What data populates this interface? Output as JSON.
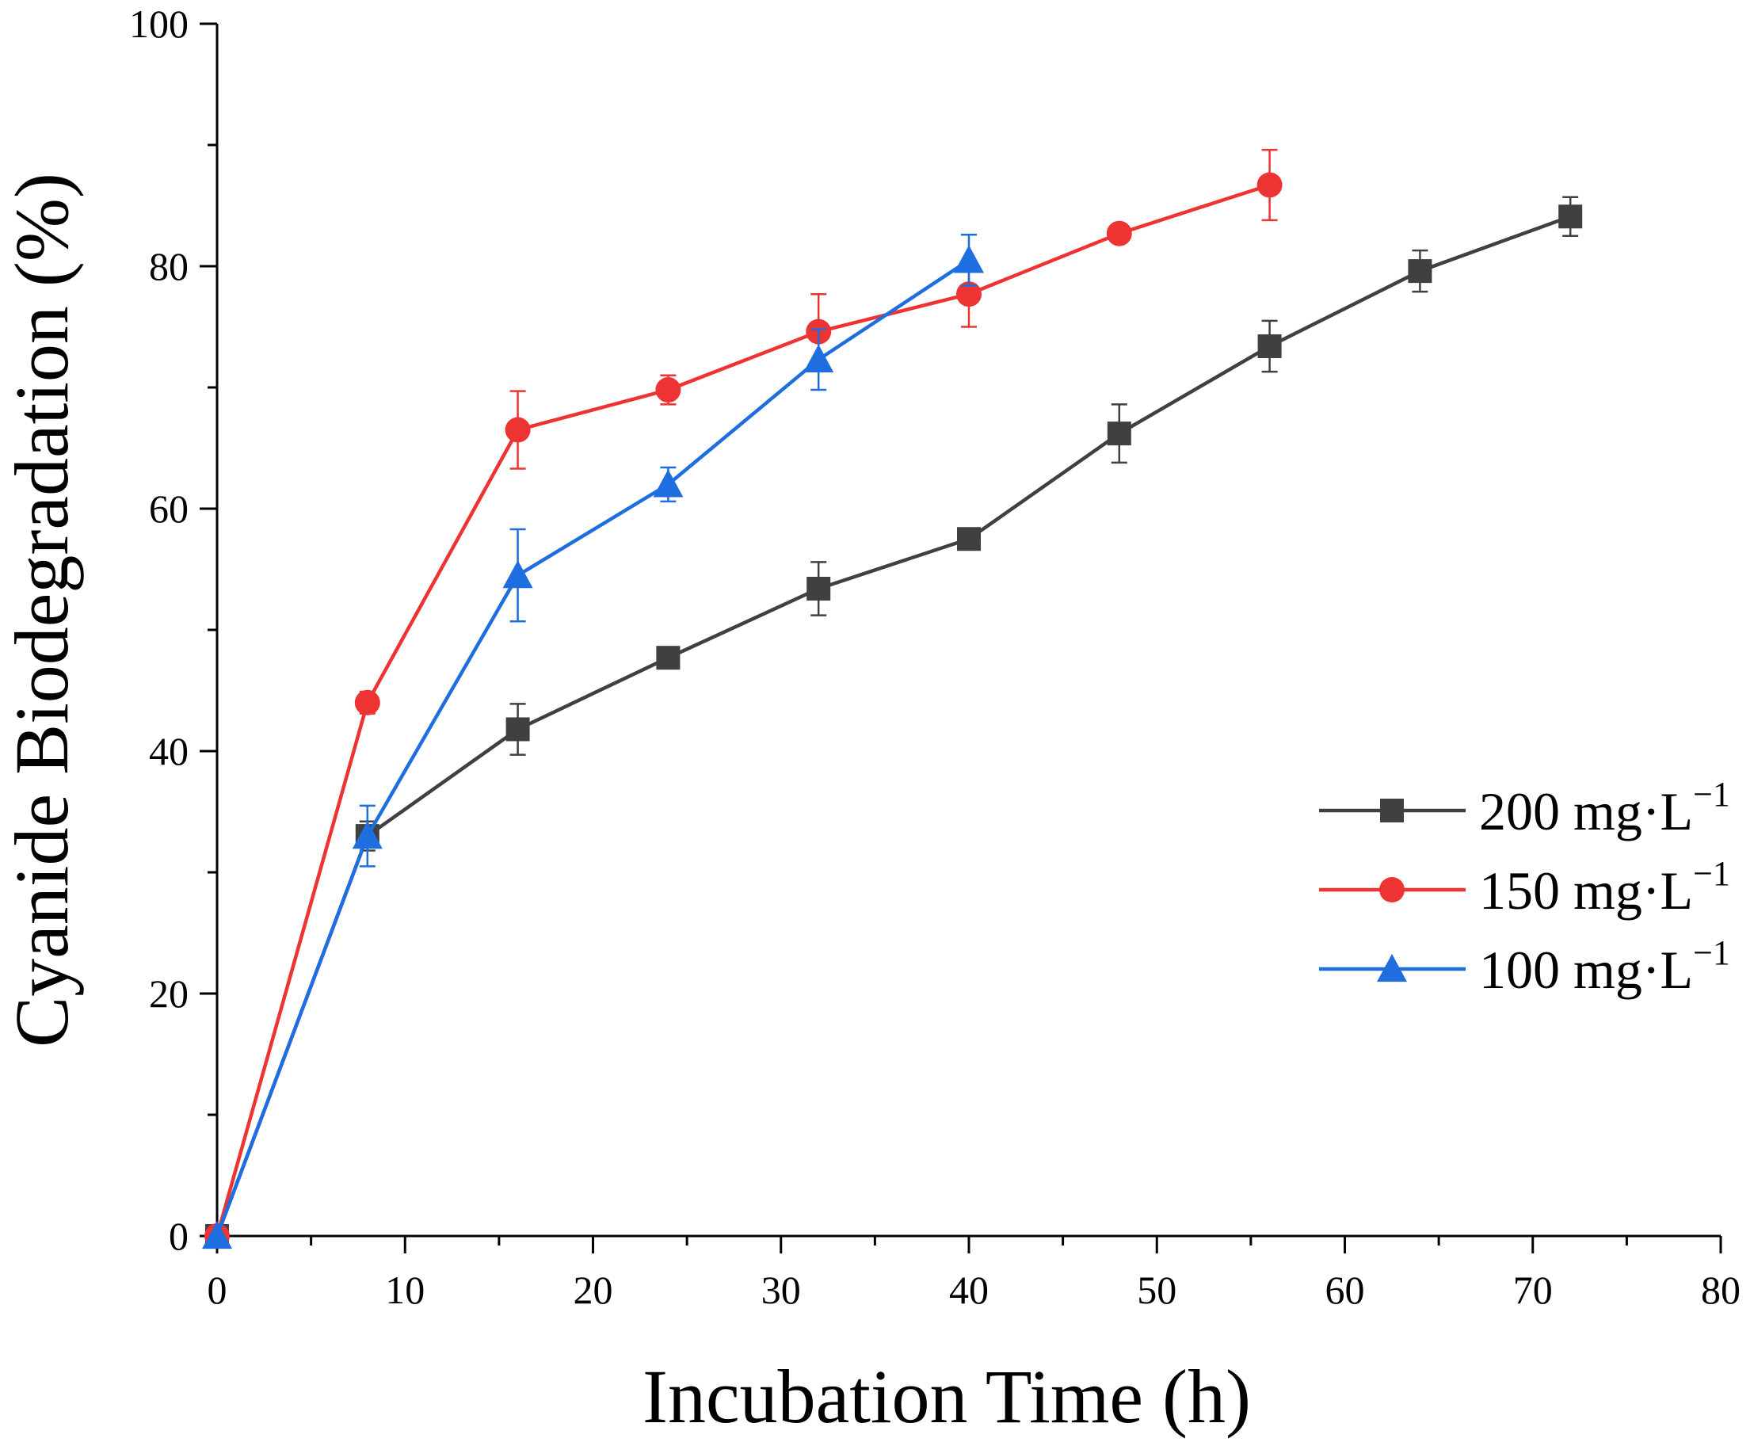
{
  "chart_data": {
    "type": "line",
    "title": "",
    "xlabel": "Incubation Time (h)",
    "ylabel": "Cyanide Biodegradation (%)",
    "xlim": [
      0,
      80
    ],
    "ylim": [
      0,
      100
    ],
    "xticks": [
      0,
      10,
      20,
      30,
      40,
      50,
      60,
      70,
      80
    ],
    "yticks": [
      0,
      20,
      40,
      60,
      80,
      100
    ],
    "grid": false,
    "legend_position": "right",
    "series": [
      {
        "name": "200 mg·L",
        "superscript": "−1",
        "color": "#404040",
        "marker": "square",
        "x": [
          0,
          8,
          16,
          24,
          32,
          40,
          48,
          56,
          64,
          72
        ],
        "y": [
          0,
          33,
          41.8,
          47.7,
          53.4,
          57.5,
          66.2,
          73.4,
          79.6,
          84.1
        ],
        "err": [
          0,
          1.2,
          2.1,
          0.8,
          2.2,
          0.6,
          2.4,
          2.1,
          1.7,
          1.6
        ]
      },
      {
        "name": "150 mg·L",
        "superscript": "−1",
        "color": "#ee3333",
        "marker": "circle",
        "x": [
          0,
          8,
          16,
          24,
          32,
          40,
          48,
          56
        ],
        "y": [
          0,
          44,
          66.5,
          69.8,
          74.6,
          77.7,
          82.7,
          86.7
        ],
        "err": [
          0,
          0.9,
          3.2,
          1.2,
          3.1,
          2.7,
          0.5,
          2.9
        ]
      },
      {
        "name": "100 mg·L",
        "superscript": "−1",
        "color": "#1f6ee0",
        "marker": "triangle",
        "x": [
          0,
          8,
          16,
          24,
          32,
          40
        ],
        "y": [
          0,
          33,
          54.5,
          62,
          72.3,
          80.5
        ],
        "err": [
          0,
          2.5,
          3.8,
          1.4,
          2.5,
          2.1
        ]
      }
    ]
  }
}
